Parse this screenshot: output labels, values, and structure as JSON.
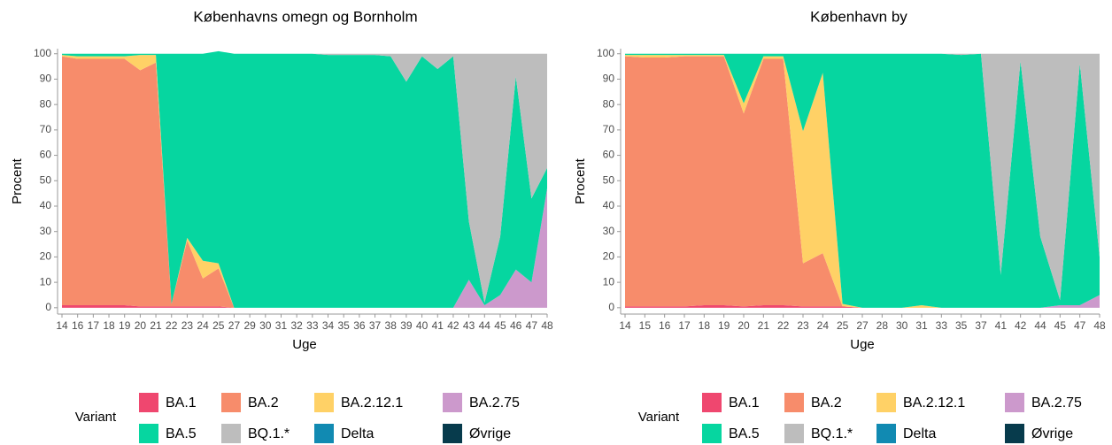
{
  "chart_data": [
    {
      "type": "area",
      "title": "Københavns omegn og Bornholm",
      "x_label": "Uge",
      "y_label": "Procent",
      "legend_title": "Variant",
      "categories": [
        "14",
        "16",
        "17",
        "18",
        "19",
        "20",
        "21",
        "22",
        "23",
        "24",
        "25",
        "27",
        "29",
        "30",
        "31",
        "32",
        "33",
        "34",
        "35",
        "36",
        "37",
        "38",
        "39",
        "40",
        "41",
        "42",
        "43",
        "44",
        "45",
        "46",
        "47",
        "48"
      ],
      "ylim": [
        -2.5,
        102
      ],
      "yticks": [
        0,
        10,
        20,
        30,
        40,
        50,
        60,
        70,
        80,
        90,
        100
      ],
      "series": [
        {
          "name": "BA.1",
          "color": "#ef476f",
          "values": [
            1,
            1,
            1,
            1,
            1,
            0.5,
            0.5,
            0.5,
            0.5,
            0.5,
            0.5,
            0,
            0,
            0,
            0,
            0,
            0,
            0,
            0,
            0,
            0,
            0,
            0,
            0,
            0,
            0,
            0,
            0,
            0,
            0,
            0,
            0
          ]
        },
        {
          "name": "BA.2",
          "color": "#f78c6b",
          "values": [
            98,
            97,
            97,
            97,
            97,
            93,
            96,
            1,
            26,
            11,
            15,
            0,
            0,
            0,
            0,
            0,
            0,
            0,
            0,
            0,
            0,
            0,
            0,
            0,
            0,
            0,
            0,
            0,
            0,
            0,
            0,
            0
          ]
        },
        {
          "name": "BA.2.12.1",
          "color": "#ffd166",
          "values": [
            0.5,
            1,
            1,
            1,
            1,
            6,
            3,
            0,
            1,
            7,
            2,
            0,
            0,
            0,
            0,
            0,
            0,
            0,
            0,
            0,
            0,
            0,
            0,
            0,
            0,
            0,
            0,
            0,
            0,
            0,
            0,
            0
          ]
        },
        {
          "name": "BA.2.75",
          "color": "#cc99cc",
          "values": [
            0,
            0,
            0,
            0,
            0,
            0,
            0,
            0,
            0,
            0,
            0,
            0,
            0,
            0,
            0,
            0,
            0,
            0,
            0,
            0,
            0,
            0,
            0,
            0,
            0,
            0,
            11,
            1,
            5,
            15,
            10,
            47
          ]
        },
        {
          "name": "BA.5",
          "color": "#06d6a0",
          "values": [
            0.5,
            1,
            1,
            1,
            1,
            0.5,
            0.5,
            98.5,
            72.5,
            81.5,
            83.5,
            100,
            100,
            100,
            100,
            100,
            100,
            99.5,
            99.5,
            99.5,
            99.5,
            99,
            89,
            99,
            94,
            99,
            23,
            1,
            23,
            76,
            33,
            8
          ]
        },
        {
          "name": "BQ.1.*",
          "color": "#bdbdbd",
          "values": [
            0,
            0,
            0,
            0,
            0,
            0,
            0,
            0,
            0,
            0,
            0,
            0,
            0,
            0,
            0,
            0,
            0,
            0.5,
            0.5,
            0.5,
            0.5,
            1,
            11,
            1,
            6,
            1,
            66,
            98,
            72,
            9,
            57,
            45
          ]
        },
        {
          "name": "Delta",
          "color": "#118ab2",
          "values": [
            0,
            0,
            0,
            0,
            0,
            0,
            0,
            0,
            0,
            0,
            0,
            0,
            0,
            0,
            0,
            0,
            0,
            0,
            0,
            0,
            0,
            0,
            0,
            0,
            0,
            0,
            0,
            0,
            0,
            0,
            0,
            0
          ]
        },
        {
          "name": "Øvrige",
          "color": "#073b4c",
          "values": [
            0,
            0,
            0,
            0,
            0,
            0,
            0,
            0,
            0,
            0,
            0,
            0,
            0,
            0,
            0,
            0,
            0,
            0,
            0,
            0,
            0,
            0,
            0,
            0,
            0,
            0,
            0,
            0,
            0,
            0,
            0,
            0
          ]
        }
      ]
    },
    {
      "type": "area",
      "title": "København by",
      "x_label": "Uge",
      "y_label": "Procent",
      "legend_title": "Variant",
      "categories": [
        "14",
        "15",
        "16",
        "17",
        "18",
        "19",
        "20",
        "21",
        "22",
        "23",
        "24",
        "25",
        "27",
        "28",
        "30",
        "31",
        "33",
        "35",
        "37",
        "41",
        "42",
        "44",
        "45",
        "47",
        "48"
      ],
      "ylim": [
        -2.5,
        102
      ],
      "yticks": [
        0,
        10,
        20,
        30,
        40,
        50,
        60,
        70,
        80,
        90,
        100
      ],
      "series": [
        {
          "name": "BA.1",
          "color": "#ef476f",
          "values": [
            0.5,
            0.5,
            0.5,
            0.5,
            1,
            1,
            0.5,
            1,
            1,
            0.5,
            0.5,
            0.5,
            0,
            0,
            0,
            0,
            0,
            0,
            0,
            0,
            0,
            0,
            0,
            0,
            0
          ]
        },
        {
          "name": "BA.2",
          "color": "#f78c6b",
          "values": [
            98.5,
            98,
            98,
            98.5,
            98,
            98,
            76,
            97,
            97,
            17,
            21,
            0,
            0,
            0,
            0,
            0,
            0,
            0,
            0,
            0,
            0,
            0,
            0,
            0,
            0
          ]
        },
        {
          "name": "BA.2.12.1",
          "color": "#ffd166",
          "values": [
            0.5,
            1,
            1,
            0.5,
            0.5,
            0.5,
            4,
            1,
            1,
            52,
            71,
            1,
            0,
            0,
            0,
            1,
            0,
            0,
            0,
            0,
            0,
            0,
            0,
            0,
            0
          ]
        },
        {
          "name": "BA.2.75",
          "color": "#cc99cc",
          "values": [
            0,
            0,
            0,
            0,
            0,
            0,
            0,
            0,
            0,
            0,
            0,
            0,
            0,
            0,
            0,
            0,
            0,
            0,
            0,
            0,
            0,
            0,
            1,
            1,
            5
          ]
        },
        {
          "name": "BA.5",
          "color": "#06d6a0",
          "values": [
            0.5,
            0.5,
            0.5,
            0.5,
            0.5,
            0.5,
            19.5,
            1,
            1,
            30.5,
            7.5,
            98.5,
            100,
            100,
            100,
            99,
            100,
            99.5,
            100,
            13,
            97,
            28,
            2,
            95,
            15
          ]
        },
        {
          "name": "BQ.1.*",
          "color": "#bdbdbd",
          "values": [
            0,
            0,
            0,
            0,
            0,
            0,
            0,
            0,
            0,
            0,
            0,
            0,
            0,
            0,
            0,
            0,
            0,
            0.5,
            0,
            87,
            3,
            72,
            97,
            4,
            80
          ]
        },
        {
          "name": "Delta",
          "color": "#118ab2",
          "values": [
            0,
            0,
            0,
            0,
            0,
            0,
            0,
            0,
            0,
            0,
            0,
            0,
            0,
            0,
            0,
            0,
            0,
            0,
            0,
            0,
            0,
            0,
            0,
            0,
            0
          ]
        },
        {
          "name": "Øvrige",
          "color": "#073b4c",
          "values": [
            0,
            0,
            0,
            0,
            0,
            0,
            0,
            0,
            0,
            0,
            0,
            0,
            0,
            0,
            0,
            0,
            0,
            0,
            0,
            0,
            0,
            0,
            0,
            0,
            0
          ]
        }
      ]
    }
  ]
}
